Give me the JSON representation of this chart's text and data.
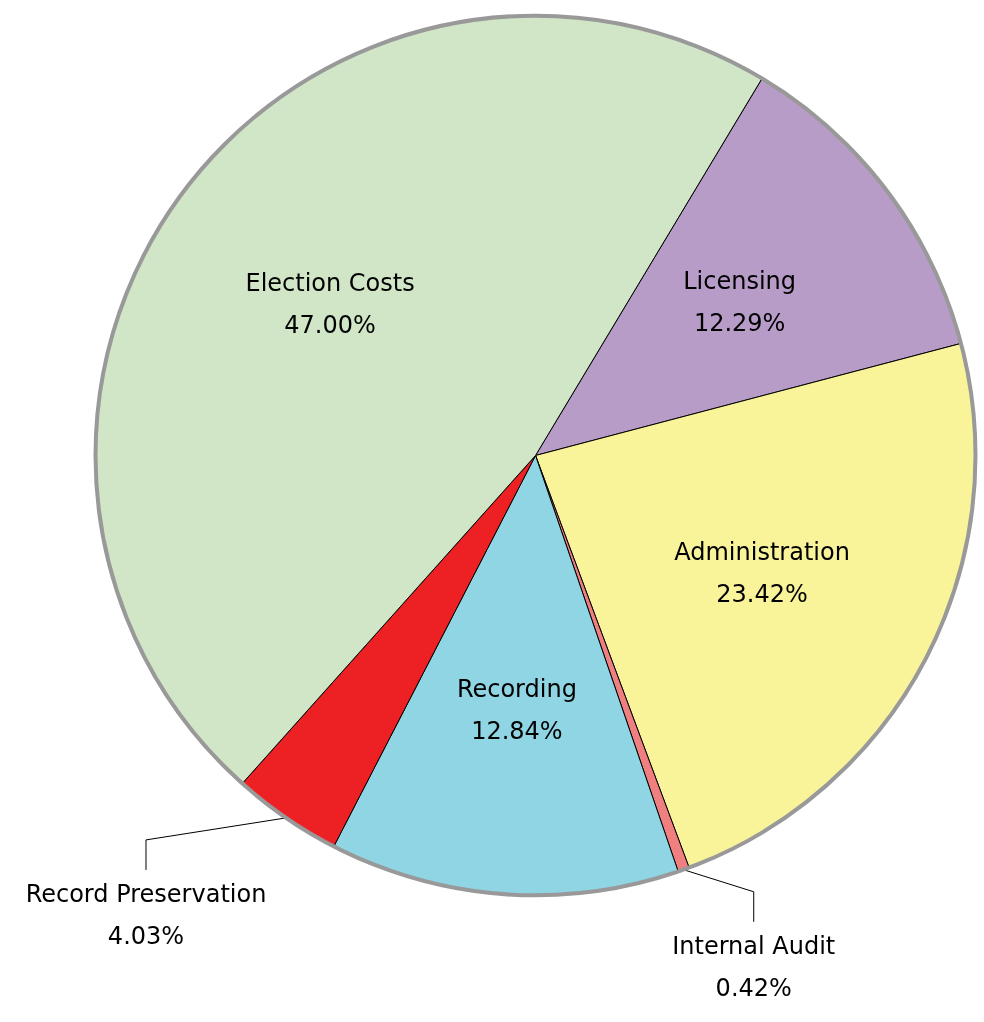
{
  "chart_data": {
    "type": "pie",
    "categories": [
      "Licensing",
      "Administration",
      "Internal Audit",
      "Recording",
      "Record Preservation",
      "Election Costs"
    ],
    "values": [
      12.29,
      23.42,
      0.42,
      12.84,
      4.03,
      47.0
    ],
    "value_labels": [
      "12.29%",
      "23.42%",
      "0.42%",
      "12.84%",
      "4.03%",
      "47.00%"
    ],
    "colors": [
      "#b89cc8",
      "#f9f39a",
      "#f08080",
      "#8fd5e3",
      "#ed2024",
      "#d0e6c6"
    ]
  }
}
